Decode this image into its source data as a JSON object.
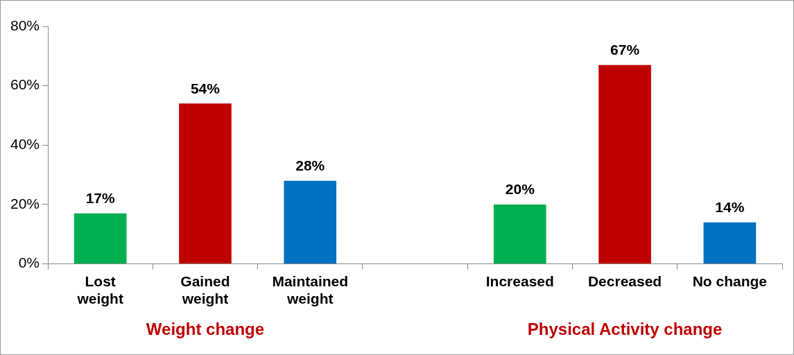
{
  "chart_data": {
    "type": "bar",
    "categories": [
      "Lost weight",
      "Gained weight",
      "Maintained weight",
      null,
      "Increased",
      "Decreased",
      "No change"
    ],
    "values": [
      17,
      54,
      28,
      null,
      20,
      67,
      14
    ],
    "colors": [
      "#00b050",
      "#c00000",
      "#0070c0",
      null,
      "#00b050",
      "#c00000",
      "#0070c0"
    ],
    "ylim": [
      0,
      80
    ],
    "yticks": [
      {
        "value": 0,
        "label": "0%"
      },
      {
        "value": 20,
        "label": "20%"
      },
      {
        "value": 40,
        "label": "40%"
      },
      {
        "value": 60,
        "label": "60%"
      },
      {
        "value": 80,
        "label": "80%"
      }
    ],
    "data_labels": true,
    "value_labels": [
      "17%",
      "54%",
      "28%",
      null,
      "20%",
      "67%",
      "14%"
    ],
    "annotations": [
      "Weight change",
      "Physical Activity change"
    ],
    "grid": false,
    "legend": false
  }
}
